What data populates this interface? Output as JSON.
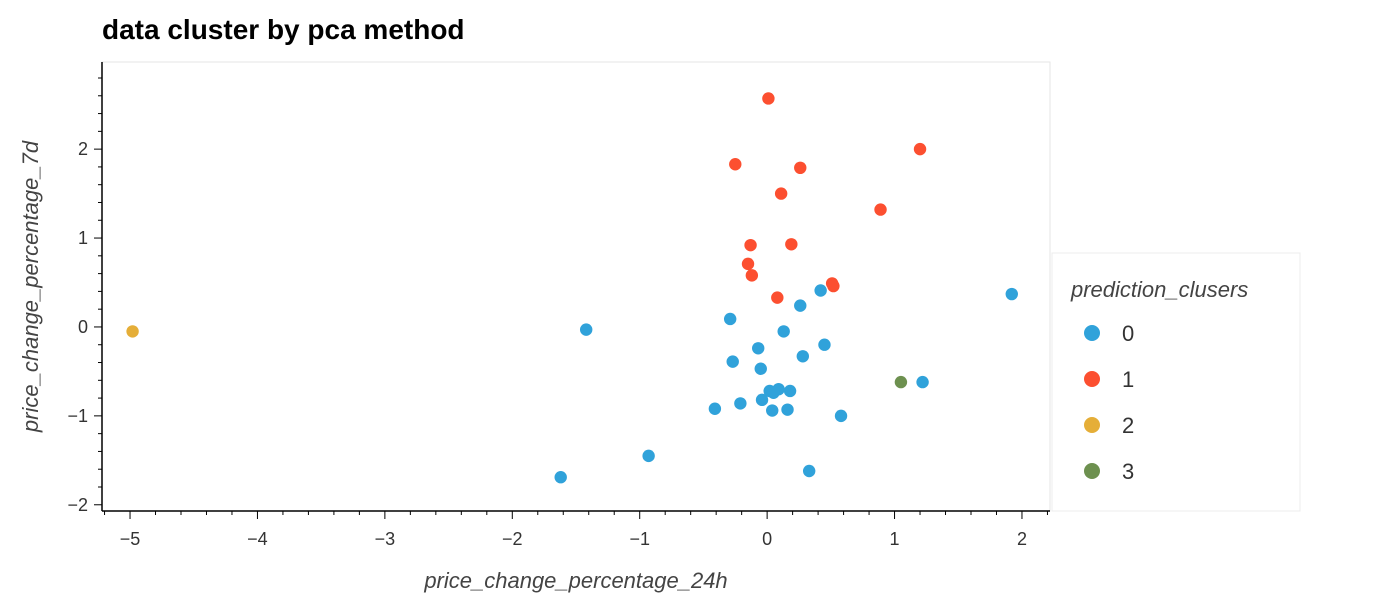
{
  "chart_data": {
    "type": "scatter",
    "title": "data cluster by pca method",
    "xlabel": "price_change_percentage_24h",
    "ylabel": "price_change_percentage_7d",
    "xlim": [
      -5.22,
      2.22
    ],
    "ylim": [
      -2.07,
      2.98
    ],
    "xticks": [
      -5,
      -4,
      -3,
      -2,
      -1,
      0,
      1,
      2
    ],
    "yticks": [
      -2,
      -1,
      0,
      1,
      2
    ],
    "grid": false,
    "legend": {
      "title": "prediction_clusers",
      "placement": "right"
    },
    "series": [
      {
        "name": "0",
        "color": "#30a2da",
        "points": [
          [
            -1.62,
            -1.69
          ],
          [
            -1.42,
            -0.03
          ],
          [
            -0.93,
            -1.45
          ],
          [
            -0.41,
            -0.92
          ],
          [
            -0.29,
            0.09
          ],
          [
            -0.27,
            -0.39
          ],
          [
            -0.21,
            -0.86
          ],
          [
            -0.07,
            -0.24
          ],
          [
            -0.05,
            -0.47
          ],
          [
            -0.04,
            -0.82
          ],
          [
            0.02,
            -0.72
          ],
          [
            0.04,
            -0.94
          ],
          [
            0.05,
            -0.74
          ],
          [
            0.09,
            -0.7
          ],
          [
            0.13,
            -0.05
          ],
          [
            0.16,
            -0.93
          ],
          [
            0.18,
            -0.72
          ],
          [
            0.26,
            0.24
          ],
          [
            0.28,
            -0.33
          ],
          [
            0.33,
            -1.62
          ],
          [
            0.42,
            0.41
          ],
          [
            0.45,
            -0.2
          ],
          [
            0.58,
            -1.0
          ],
          [
            1.22,
            -0.62
          ],
          [
            1.92,
            0.37
          ]
        ]
      },
      {
        "name": "1",
        "color": "#fc4f30",
        "points": [
          [
            -0.25,
            1.83
          ],
          [
            -0.15,
            0.71
          ],
          [
            -0.13,
            0.92
          ],
          [
            -0.12,
            0.58
          ],
          [
            0.01,
            2.57
          ],
          [
            0.08,
            0.33
          ],
          [
            0.11,
            1.5
          ],
          [
            0.19,
            0.93
          ],
          [
            0.26,
            1.79
          ],
          [
            0.51,
            0.49
          ],
          [
            0.52,
            0.46
          ],
          [
            0.89,
            1.32
          ],
          [
            1.2,
            2.0
          ]
        ]
      },
      {
        "name": "2",
        "color": "#e5ae38",
        "points": [
          [
            -4.98,
            -0.05
          ]
        ]
      },
      {
        "name": "3",
        "color": "#6d904f",
        "points": [
          [
            1.05,
            -0.62
          ]
        ]
      }
    ]
  }
}
